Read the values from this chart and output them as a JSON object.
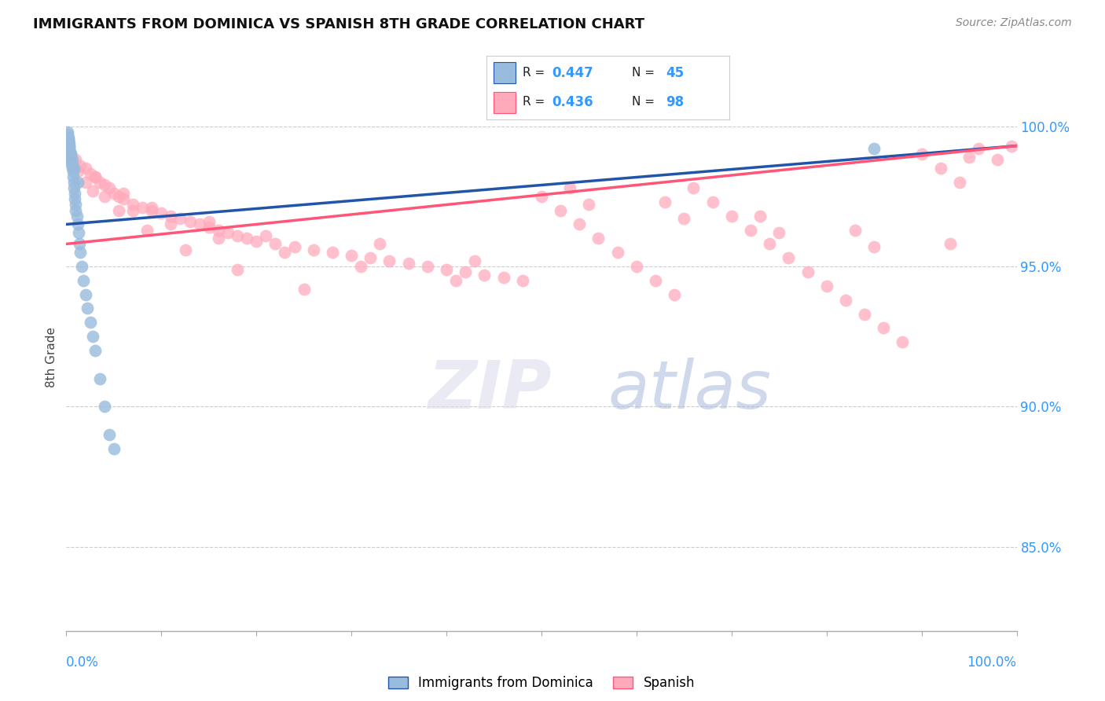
{
  "title": "IMMIGRANTS FROM DOMINICA VS SPANISH 8TH GRADE CORRELATION CHART",
  "source_text": "Source: ZipAtlas.com",
  "ylabel": "8th Grade",
  "x_min": 0.0,
  "x_max": 100.0,
  "y_min": 82.0,
  "y_max": 101.5,
  "y_ticks": [
    85.0,
    90.0,
    95.0,
    100.0
  ],
  "y_tick_labels": [
    "85.0%",
    "90.0%",
    "95.0%",
    "100.0%"
  ],
  "color_blue": "#99BBDD",
  "color_pink": "#FFAABB",
  "color_blue_line": "#2255AA",
  "color_pink_line": "#FF5577",
  "legend_label1": "Immigrants from Dominica",
  "legend_label2": "Spanish",
  "blue_scatter_x": [
    0.1,
    0.2,
    0.2,
    0.3,
    0.3,
    0.3,
    0.4,
    0.4,
    0.5,
    0.5,
    0.5,
    0.6,
    0.6,
    0.7,
    0.7,
    0.8,
    0.8,
    0.9,
    0.9,
    1.0,
    1.0,
    1.1,
    1.2,
    1.3,
    1.4,
    1.5,
    1.6,
    1.8,
    2.0,
    2.2,
    2.5,
    2.8,
    3.0,
    3.5,
    4.0,
    4.5,
    5.0,
    0.1,
    0.2,
    0.3,
    0.4,
    0.6,
    0.8,
    1.2,
    85.0
  ],
  "blue_scatter_y": [
    99.8,
    99.5,
    99.6,
    99.4,
    99.3,
    99.2,
    99.1,
    98.9,
    99.0,
    98.8,
    98.7,
    98.6,
    98.5,
    98.4,
    98.2,
    98.0,
    97.8,
    97.6,
    97.4,
    97.2,
    97.0,
    96.8,
    96.5,
    96.2,
    95.8,
    95.5,
    95.0,
    94.5,
    94.0,
    93.5,
    93.0,
    92.5,
    92.0,
    91.0,
    90.0,
    89.0,
    88.5,
    99.7,
    99.5,
    99.3,
    99.0,
    98.8,
    98.5,
    98.0,
    99.2
  ],
  "pink_scatter_x": [
    0.5,
    1.0,
    1.5,
    2.0,
    2.5,
    3.0,
    3.5,
    4.0,
    4.5,
    5.0,
    5.5,
    6.0,
    7.0,
    8.0,
    9.0,
    10.0,
    11.0,
    12.0,
    13.0,
    14.0,
    15.0,
    16.0,
    17.0,
    18.0,
    19.0,
    20.0,
    22.0,
    24.0,
    26.0,
    28.0,
    30.0,
    32.0,
    34.0,
    36.0,
    38.0,
    40.0,
    42.0,
    44.0,
    46.0,
    48.0,
    50.0,
    52.0,
    54.0,
    56.0,
    58.0,
    60.0,
    62.0,
    64.0,
    66.0,
    68.0,
    70.0,
    72.0,
    74.0,
    76.0,
    78.0,
    80.0,
    82.0,
    84.0,
    86.0,
    88.0,
    90.0,
    92.0,
    94.0,
    96.0,
    98.0,
    99.5,
    1.2,
    2.8,
    5.5,
    8.5,
    12.5,
    18.0,
    25.0,
    33.0,
    43.0,
    55.0,
    65.0,
    75.0,
    85.0,
    95.0,
    2.0,
    4.0,
    7.0,
    11.0,
    16.0,
    23.0,
    31.0,
    41.0,
    53.0,
    63.0,
    73.0,
    83.0,
    93.0,
    3.0,
    6.0,
    9.0,
    15.0,
    21.0
  ],
  "pink_scatter_y": [
    99.0,
    98.8,
    98.6,
    98.5,
    98.3,
    98.2,
    98.0,
    97.9,
    97.8,
    97.6,
    97.5,
    97.4,
    97.2,
    97.1,
    97.0,
    96.9,
    96.8,
    96.7,
    96.6,
    96.5,
    96.4,
    96.3,
    96.2,
    96.1,
    96.0,
    95.9,
    95.8,
    95.7,
    95.6,
    95.5,
    95.4,
    95.3,
    95.2,
    95.1,
    95.0,
    94.9,
    94.8,
    94.7,
    94.6,
    94.5,
    97.5,
    97.0,
    96.5,
    96.0,
    95.5,
    95.0,
    94.5,
    94.0,
    97.8,
    97.3,
    96.8,
    96.3,
    95.8,
    95.3,
    94.8,
    94.3,
    93.8,
    93.3,
    92.8,
    92.3,
    99.0,
    98.5,
    98.0,
    99.2,
    98.8,
    99.3,
    98.4,
    97.7,
    97.0,
    96.3,
    95.6,
    94.9,
    94.2,
    95.8,
    95.2,
    97.2,
    96.7,
    96.2,
    95.7,
    98.9,
    98.0,
    97.5,
    97.0,
    96.5,
    96.0,
    95.5,
    95.0,
    94.5,
    97.8,
    97.3,
    96.8,
    96.3,
    95.8,
    98.2,
    97.6,
    97.1,
    96.6,
    96.1
  ],
  "blue_trendline_x": [
    0.0,
    100.0
  ],
  "blue_trendline_y": [
    96.5,
    99.3
  ],
  "pink_trendline_x": [
    0.0,
    100.0
  ],
  "pink_trendline_y": [
    95.8,
    99.3
  ]
}
